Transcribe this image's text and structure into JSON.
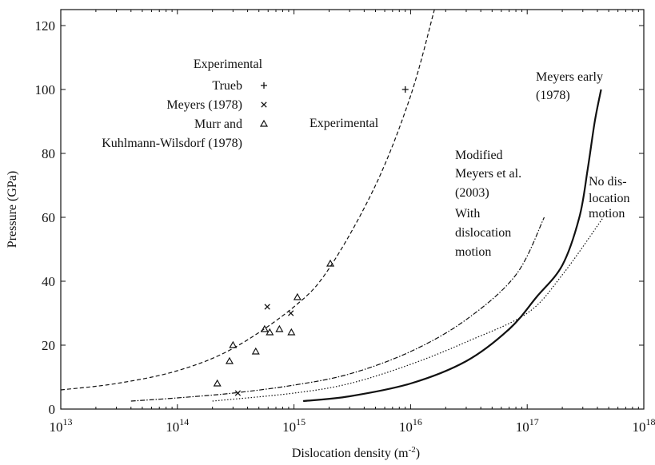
{
  "chart_data": {
    "type": "scatter",
    "xlabel": "Dislocation density (m",
    "xlabel_sup": "-2",
    "xlabel_end": ")",
    "ylabel": "Pressure (GPa)",
    "xscale": "log",
    "xlim": [
      10000000000000.0,
      1e+18
    ],
    "ylim": [
      0,
      125
    ],
    "x_ticks": [
      13,
      14,
      15,
      16,
      17,
      18
    ],
    "x_tick_base": "10",
    "y_ticks": [
      0,
      20,
      40,
      60,
      80,
      100,
      120
    ],
    "legend": {
      "title": "Experimental",
      "entries": [
        {
          "label": "Trueb",
          "marker": "plus"
        },
        {
          "label": "Meyers (1978)",
          "marker": "cross"
        },
        {
          "label": "Murr and",
          "label2": "Kuhlmann-Wilsdorf (1978)",
          "marker": "triangle"
        }
      ]
    },
    "points": {
      "trueb": [
        [
          9000000000000000.0,
          100
        ]
      ],
      "meyers1978": [
        [
          590000000000000.0,
          32
        ],
        [
          940000000000000.0,
          30
        ],
        [
          330000000000000.0,
          5
        ]
      ],
      "murr": [
        [
          220000000000000.0,
          8
        ],
        [
          280000000000000.0,
          15
        ],
        [
          300000000000000.0,
          20
        ],
        [
          470000000000000.0,
          18
        ],
        [
          560000000000000.0,
          25
        ],
        [
          620000000000000.0,
          24
        ],
        [
          750000000000000.0,
          25
        ],
        [
          950000000000000.0,
          24
        ],
        [
          1070000000000000.0,
          35
        ],
        [
          2050000000000000.0,
          45.5
        ]
      ]
    },
    "curves": [
      {
        "name": "Experimental",
        "style": "dashed",
        "points": [
          [
            10000000000000.0,
            6
          ],
          [
            30000000000000.0,
            8
          ],
          [
            100000000000000.0,
            12
          ],
          [
            300000000000000.0,
            19
          ],
          [
            1000000000000000.0,
            32
          ],
          [
            2000000000000000.0,
            44
          ],
          [
            5000000000000000.0,
            70
          ],
          [
            1e+16,
            98
          ],
          [
            1.6e+16,
            125
          ]
        ]
      },
      {
        "name": "Modified Meyers et al. (2003) With dislocation motion",
        "style": "dashdot",
        "points": [
          [
            40000000000000.0,
            2.5
          ],
          [
            100000000000000.0,
            3.5
          ],
          [
            300000000000000.0,
            5
          ],
          [
            1000000000000000.0,
            7.5
          ],
          [
            3000000000000000.0,
            11
          ],
          [
            1e+16,
            18
          ],
          [
            3e+16,
            28
          ],
          [
            8e+16,
            42
          ],
          [
            1.4e+17,
            60
          ]
        ]
      },
      {
        "name": "No dislocation motion",
        "style": "dotted",
        "points": [
          [
            200000000000000.0,
            2.5
          ],
          [
            1000000000000000.0,
            5
          ],
          [
            3000000000000000.0,
            8
          ],
          [
            1e+16,
            14
          ],
          [
            3e+16,
            21
          ],
          [
            1e+17,
            30
          ],
          [
            2e+17,
            42
          ],
          [
            4.5e+17,
            60
          ]
        ]
      },
      {
        "name": "Meyers early (1978)",
        "style": "solid",
        "points": [
          [
            1200000000000000.0,
            2.5
          ],
          [
            3000000000000000.0,
            4
          ],
          [
            1e+16,
            8
          ],
          [
            3e+16,
            15
          ],
          [
            7e+16,
            25
          ],
          [
            1.2e+17,
            35
          ],
          [
            2e+17,
            45
          ],
          [
            2.8e+17,
            60
          ],
          [
            3.3e+17,
            75
          ],
          [
            3.8e+17,
            90
          ],
          [
            4.3e+17,
            100
          ]
        ]
      }
    ],
    "annotations": {
      "experimental": "Experimental",
      "meyers_early_1": "Meyers early",
      "meyers_early_2": "(1978)",
      "modified_1": "Modified",
      "modified_2": "Meyers et al.",
      "modified_3": "(2003)",
      "modified_4": "With",
      "modified_5": "dislocation",
      "modified_6": "motion",
      "nodis_1": "No dis-",
      "nodis_2": "location",
      "nodis_3": "motion"
    }
  }
}
